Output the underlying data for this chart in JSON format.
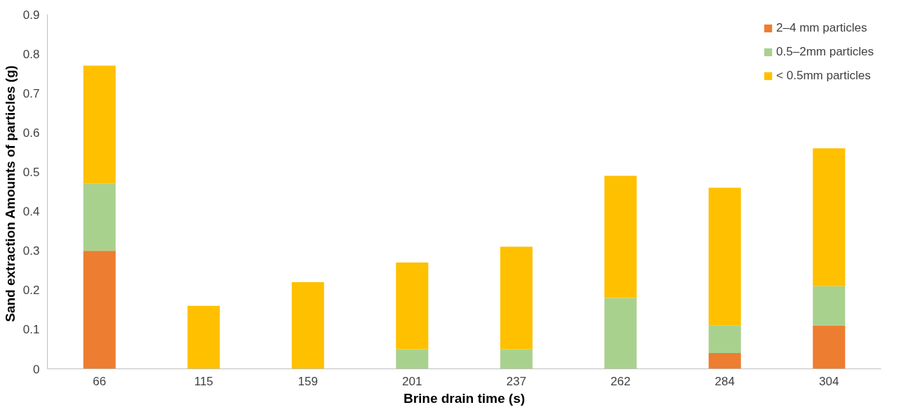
{
  "chart_data": {
    "type": "bar",
    "stacked": true,
    "xlabel": "Brine drain time (s)",
    "ylabel": "Sand extraction Amounts of  particles (g)",
    "categories": [
      "66",
      "115",
      "159",
      "201",
      "237",
      "262",
      "284",
      "304"
    ],
    "series": [
      {
        "name": "2–4 mm particles",
        "color": "#ed7d31",
        "values": [
          0.3,
          0,
          0,
          0,
          0,
          0,
          0.04,
          0.11
        ]
      },
      {
        "name": "0.5–2mm particles",
        "color": "#a9d18e",
        "values": [
          0.17,
          0,
          0,
          0.05,
          0.05,
          0.18,
          0.07,
          0.1
        ]
      },
      {
        "name": "< 0.5mm particles",
        "color": "#ffc000",
        "values": [
          0.3,
          0.16,
          0.22,
          0.22,
          0.26,
          0.31,
          0.35,
          0.35
        ]
      }
    ],
    "ylim": [
      0,
      0.9
    ],
    "yticks": [
      0,
      0.1,
      0.2,
      0.3,
      0.4,
      0.5,
      0.6,
      0.7,
      0.8,
      0.9
    ],
    "grid": false,
    "legend": "top right"
  }
}
